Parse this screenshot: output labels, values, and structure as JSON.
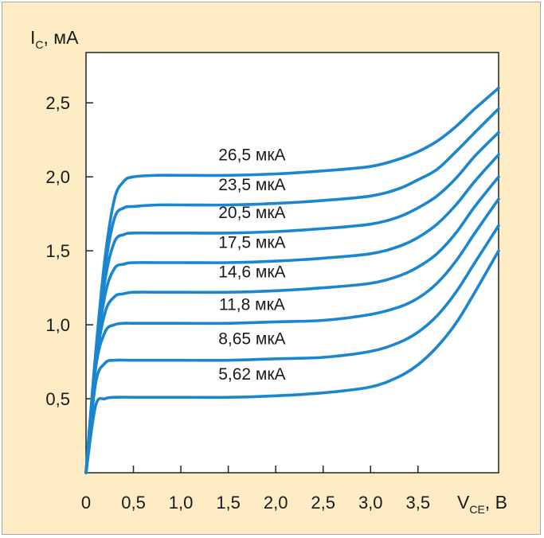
{
  "chart_data": {
    "type": "line",
    "ylabel": {
      "main": "I",
      "sub": "C",
      "rest": ", мА"
    },
    "xlabel": {
      "main": "V",
      "sub": "CE",
      "rest": ", В"
    },
    "xlim": [
      0,
      4.35
    ],
    "ylim": [
      0,
      2.84
    ],
    "x_ticks": [
      0,
      0.5,
      1.0,
      1.5,
      2.0,
      2.5,
      3.0,
      3.5
    ],
    "x_tick_labels": [
      "0",
      "0,5",
      "1,0",
      "1,5",
      "2,0",
      "2,5",
      "3,0",
      "3,5"
    ],
    "y_ticks": [
      0.5,
      1.0,
      1.5,
      2.0,
      2.5
    ],
    "y_tick_labels": [
      "0,5",
      "1,0",
      "1,5",
      "2,0",
      "2,5"
    ],
    "grid": false,
    "legend": "none",
    "line_color": "#1a86cf",
    "background": "#fdecc4",
    "plot_background": "#ffffff",
    "series": [
      {
        "name": "26,5 мкА",
        "points": [
          [
            0,
            0
          ],
          [
            0.1,
            0.8
          ],
          [
            0.2,
            1.45
          ],
          [
            0.3,
            1.85
          ],
          [
            0.4,
            1.97
          ],
          [
            0.5,
            2.0
          ],
          [
            0.75,
            2.01
          ],
          [
            1.0,
            2.01
          ],
          [
            1.5,
            2.01
          ],
          [
            2.0,
            2.02
          ],
          [
            2.5,
            2.04
          ],
          [
            3.0,
            2.07
          ],
          [
            3.3,
            2.12
          ],
          [
            3.5,
            2.17
          ],
          [
            3.7,
            2.24
          ],
          [
            3.9,
            2.34
          ],
          [
            4.1,
            2.46
          ],
          [
            4.35,
            2.6
          ]
        ]
      },
      {
        "name": "23,5 мкА",
        "points": [
          [
            0,
            0
          ],
          [
            0.1,
            0.78
          ],
          [
            0.2,
            1.38
          ],
          [
            0.3,
            1.72
          ],
          [
            0.4,
            1.79
          ],
          [
            0.5,
            1.8
          ],
          [
            0.75,
            1.81
          ],
          [
            1.0,
            1.81
          ],
          [
            1.5,
            1.81
          ],
          [
            2.0,
            1.82
          ],
          [
            2.5,
            1.84
          ],
          [
            3.0,
            1.87
          ],
          [
            3.3,
            1.92
          ],
          [
            3.5,
            1.98
          ],
          [
            3.7,
            2.05
          ],
          [
            3.9,
            2.17
          ],
          [
            4.1,
            2.3
          ],
          [
            4.35,
            2.46
          ]
        ]
      },
      {
        "name": "20,5 мкА",
        "points": [
          [
            0,
            0
          ],
          [
            0.1,
            0.76
          ],
          [
            0.2,
            1.3
          ],
          [
            0.3,
            1.56
          ],
          [
            0.4,
            1.61
          ],
          [
            0.5,
            1.62
          ],
          [
            0.75,
            1.62
          ],
          [
            1.0,
            1.62
          ],
          [
            1.5,
            1.62
          ],
          [
            2.0,
            1.63
          ],
          [
            2.5,
            1.65
          ],
          [
            3.0,
            1.68
          ],
          [
            3.3,
            1.73
          ],
          [
            3.5,
            1.79
          ],
          [
            3.7,
            1.87
          ],
          [
            3.9,
            1.99
          ],
          [
            4.1,
            2.14
          ],
          [
            4.35,
            2.3
          ]
        ]
      },
      {
        "name": "17,5 мкА",
        "points": [
          [
            0,
            0
          ],
          [
            0.1,
            0.74
          ],
          [
            0.2,
            1.2
          ],
          [
            0.3,
            1.38
          ],
          [
            0.4,
            1.41
          ],
          [
            0.5,
            1.42
          ],
          [
            0.75,
            1.42
          ],
          [
            1.0,
            1.42
          ],
          [
            1.5,
            1.42
          ],
          [
            2.0,
            1.43
          ],
          [
            2.5,
            1.45
          ],
          [
            3.0,
            1.48
          ],
          [
            3.3,
            1.53
          ],
          [
            3.5,
            1.59
          ],
          [
            3.7,
            1.68
          ],
          [
            3.9,
            1.81
          ],
          [
            4.1,
            1.97
          ],
          [
            4.35,
            2.15
          ]
        ]
      },
      {
        "name": "14,6 мкА",
        "points": [
          [
            0,
            0
          ],
          [
            0.1,
            0.72
          ],
          [
            0.2,
            1.08
          ],
          [
            0.3,
            1.19
          ],
          [
            0.4,
            1.21
          ],
          [
            0.5,
            1.22
          ],
          [
            0.75,
            1.22
          ],
          [
            1.0,
            1.22
          ],
          [
            1.5,
            1.22
          ],
          [
            2.0,
            1.23
          ],
          [
            2.5,
            1.25
          ],
          [
            3.0,
            1.28
          ],
          [
            3.3,
            1.33
          ],
          [
            3.5,
            1.39
          ],
          [
            3.7,
            1.48
          ],
          [
            3.9,
            1.62
          ],
          [
            4.1,
            1.8
          ],
          [
            4.35,
            2.0
          ]
        ]
      },
      {
        "name": "11,8 мкА",
        "points": [
          [
            0,
            0
          ],
          [
            0.1,
            0.7
          ],
          [
            0.2,
            0.95
          ],
          [
            0.3,
            1.0
          ],
          [
            0.4,
            1.01
          ],
          [
            0.5,
            1.01
          ],
          [
            0.75,
            1.01
          ],
          [
            1.0,
            1.01
          ],
          [
            1.5,
            1.01
          ],
          [
            2.0,
            1.02
          ],
          [
            2.5,
            1.03
          ],
          [
            3.0,
            1.07
          ],
          [
            3.3,
            1.12
          ],
          [
            3.5,
            1.18
          ],
          [
            3.7,
            1.28
          ],
          [
            3.9,
            1.43
          ],
          [
            4.1,
            1.62
          ],
          [
            4.35,
            1.85
          ]
        ]
      },
      {
        "name": "8,65 мкА",
        "points": [
          [
            0,
            0
          ],
          [
            0.1,
            0.6
          ],
          [
            0.2,
            0.74
          ],
          [
            0.3,
            0.76
          ],
          [
            0.5,
            0.76
          ],
          [
            0.75,
            0.76
          ],
          [
            1.0,
            0.76
          ],
          [
            1.5,
            0.76
          ],
          [
            2.0,
            0.77
          ],
          [
            2.5,
            0.78
          ],
          [
            3.0,
            0.82
          ],
          [
            3.3,
            0.88
          ],
          [
            3.5,
            0.95
          ],
          [
            3.7,
            1.06
          ],
          [
            3.9,
            1.22
          ],
          [
            4.1,
            1.42
          ],
          [
            4.35,
            1.67
          ]
        ]
      },
      {
        "name": "5,62 мкА",
        "points": [
          [
            0,
            0
          ],
          [
            0.1,
            0.45
          ],
          [
            0.2,
            0.5
          ],
          [
            0.3,
            0.51
          ],
          [
            0.5,
            0.51
          ],
          [
            0.75,
            0.51
          ],
          [
            1.0,
            0.51
          ],
          [
            1.5,
            0.51
          ],
          [
            2.0,
            0.52
          ],
          [
            2.5,
            0.54
          ],
          [
            3.0,
            0.58
          ],
          [
            3.3,
            0.65
          ],
          [
            3.5,
            0.73
          ],
          [
            3.7,
            0.85
          ],
          [
            3.9,
            1.01
          ],
          [
            4.1,
            1.22
          ],
          [
            4.35,
            1.5
          ]
        ]
      }
    ],
    "curve_label_positions": [
      {
        "x": 1.75,
        "y": 2.11
      },
      {
        "x": 1.75,
        "y": 1.91
      },
      {
        "x": 1.75,
        "y": 1.72
      },
      {
        "x": 1.75,
        "y": 1.52
      },
      {
        "x": 1.75,
        "y": 1.32
      },
      {
        "x": 1.75,
        "y": 1.1
      },
      {
        "x": 1.75,
        "y": 0.87
      },
      {
        "x": 1.75,
        "y": 0.63
      }
    ]
  }
}
